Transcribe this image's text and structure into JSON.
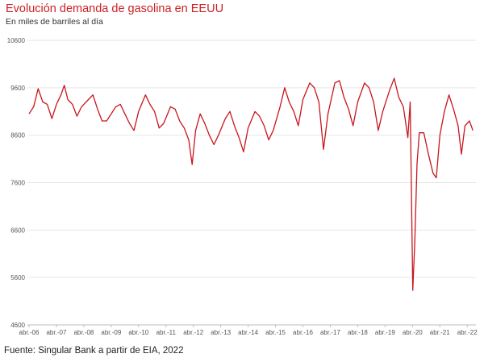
{
  "chart_data": {
    "type": "line",
    "title": "Evolución demanda de gasolina en EEUU",
    "subtitle": "En miles de barriles al día",
    "source": "Fuente: Singular Bank a partir de EIA, 2022",
    "xlabel": "",
    "ylabel": "",
    "ylim": [
      4600,
      10600
    ],
    "yticks": [
      4600,
      5600,
      6600,
      7600,
      8600,
      9600,
      10600
    ],
    "x_ticks": [
      "abr.-06",
      "abr.-07",
      "abr.-08",
      "abr.-09",
      "abr.-10",
      "abr.-11",
      "abr.-12",
      "abr.-13",
      "abr.-14",
      "abr.-15",
      "abr.-16",
      "abr.-17",
      "abr.-18",
      "abr.-19",
      "abr.-20",
      "abr.-21",
      "abr.-22"
    ],
    "grid": "horizontal",
    "line_color": "#c8161d",
    "series": [
      {
        "values": [
          [
            "2006-04-01",
            9050
          ],
          [
            "2006-06-01",
            9200
          ],
          [
            "2006-08-01",
            9580
          ],
          [
            "2006-10-01",
            9300
          ],
          [
            "2006-12-01",
            9250
          ],
          [
            "2007-02-01",
            8950
          ],
          [
            "2007-04-01",
            9250
          ],
          [
            "2007-06-01",
            9450
          ],
          [
            "2007-07-15",
            9650
          ],
          [
            "2007-09-01",
            9350
          ],
          [
            "2007-11-01",
            9250
          ],
          [
            "2008-01-01",
            9000
          ],
          [
            "2008-03-01",
            9200
          ],
          [
            "2008-06-01",
            9350
          ],
          [
            "2008-08-01",
            9450
          ],
          [
            "2008-10-01",
            9150
          ],
          [
            "2008-12-01",
            8900
          ],
          [
            "2009-02-01",
            8900
          ],
          [
            "2009-04-01",
            9050
          ],
          [
            "2009-06-01",
            9200
          ],
          [
            "2009-08-01",
            9250
          ],
          [
            "2009-10-01",
            9050
          ],
          [
            "2009-12-01",
            8850
          ],
          [
            "2010-02-01",
            8700
          ],
          [
            "2010-04-01",
            9100
          ],
          [
            "2010-07-01",
            9450
          ],
          [
            "2010-09-01",
            9250
          ],
          [
            "2010-11-01",
            9100
          ],
          [
            "2011-01-01",
            8750
          ],
          [
            "2011-03-01",
            8850
          ],
          [
            "2011-06-01",
            9200
          ],
          [
            "2011-08-01",
            9150
          ],
          [
            "2011-10-01",
            8900
          ],
          [
            "2011-12-01",
            8750
          ],
          [
            "2012-02-01",
            8500
          ],
          [
            "2012-03-15",
            7980
          ],
          [
            "2012-05-01",
            8700
          ],
          [
            "2012-07-01",
            9050
          ],
          [
            "2012-09-01",
            8850
          ],
          [
            "2012-11-01",
            8600
          ],
          [
            "2013-01-01",
            8400
          ],
          [
            "2013-03-01",
            8600
          ],
          [
            "2013-06-01",
            8950
          ],
          [
            "2013-08-01",
            9100
          ],
          [
            "2013-10-01",
            8800
          ],
          [
            "2013-12-01",
            8550
          ],
          [
            "2014-02-01",
            8250
          ],
          [
            "2014-04-01",
            8750
          ],
          [
            "2014-07-01",
            9100
          ],
          [
            "2014-09-01",
            9000
          ],
          [
            "2014-11-01",
            8800
          ],
          [
            "2015-01-01",
            8500
          ],
          [
            "2015-03-01",
            8700
          ],
          [
            "2015-06-01",
            9200
          ],
          [
            "2015-08-01",
            9600
          ],
          [
            "2015-10-01",
            9300
          ],
          [
            "2015-12-01",
            9100
          ],
          [
            "2016-02-01",
            8800
          ],
          [
            "2016-04-01",
            9350
          ],
          [
            "2016-07-01",
            9700
          ],
          [
            "2016-09-01",
            9600
          ],
          [
            "2016-11-01",
            9300
          ],
          [
            "2017-01-01",
            8300
          ],
          [
            "2017-03-01",
            9050
          ],
          [
            "2017-06-01",
            9700
          ],
          [
            "2017-08-01",
            9750
          ],
          [
            "2017-10-01",
            9400
          ],
          [
            "2017-12-01",
            9150
          ],
          [
            "2018-02-01",
            8800
          ],
          [
            "2018-04-01",
            9300
          ],
          [
            "2018-07-01",
            9700
          ],
          [
            "2018-09-01",
            9600
          ],
          [
            "2018-11-01",
            9300
          ],
          [
            "2019-01-01",
            8700
          ],
          [
            "2019-03-01",
            9100
          ],
          [
            "2019-06-01",
            9550
          ],
          [
            "2019-08-01",
            9800
          ],
          [
            "2019-10-01",
            9400
          ],
          [
            "2019-12-01",
            9200
          ],
          [
            "2020-02-01",
            8550
          ],
          [
            "2020-03-01",
            9300
          ],
          [
            "2020-04-05",
            5330
          ],
          [
            "2020-05-01",
            6300
          ],
          [
            "2020-06-01",
            8000
          ],
          [
            "2020-07-01",
            8650
          ],
          [
            "2020-09-01",
            8650
          ],
          [
            "2020-11-01",
            8200
          ],
          [
            "2021-01-01",
            7800
          ],
          [
            "2021-02-15",
            7700
          ],
          [
            "2021-04-01",
            8600
          ],
          [
            "2021-06-01",
            9100
          ],
          [
            "2021-08-01",
            9450
          ],
          [
            "2021-10-01",
            9150
          ],
          [
            "2021-12-01",
            8800
          ],
          [
            "2022-01-15",
            8200
          ],
          [
            "2022-03-01",
            8800
          ],
          [
            "2022-05-01",
            8900
          ],
          [
            "2022-06-15",
            8700
          ]
        ]
      }
    ]
  }
}
